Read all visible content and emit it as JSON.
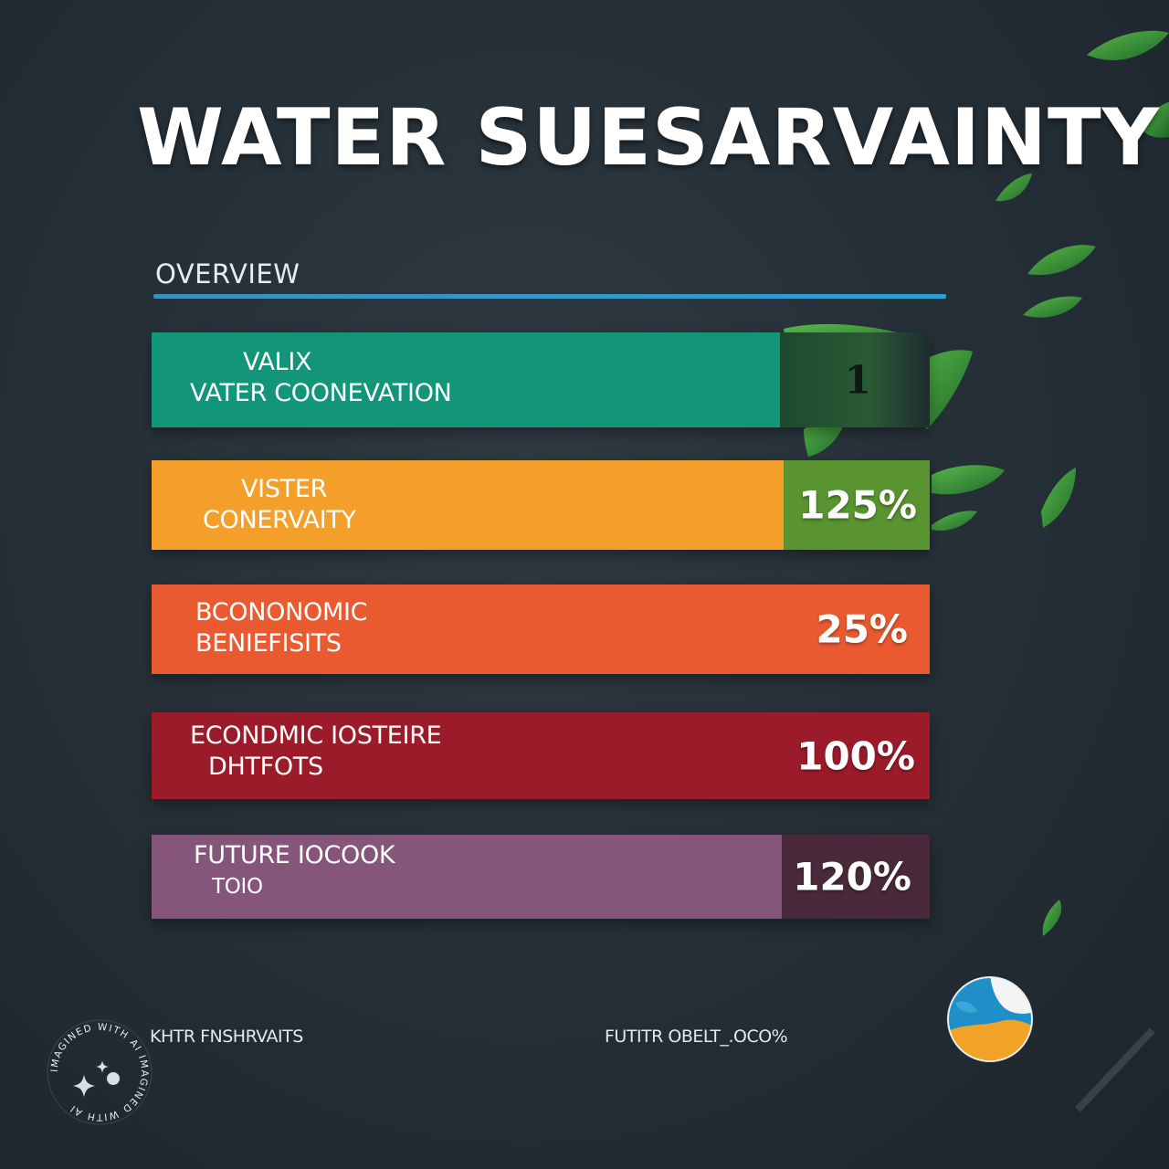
{
  "title": "WATER SUESARVAINTY",
  "overview": {
    "label": "OVERVIEW",
    "rule_color": "#2aa0d6"
  },
  "bars": [
    {
      "lines": [
        "VALIX",
        "VATER COONEVATION"
      ],
      "value": "1",
      "main_color": "#13957a",
      "value_color": "#2a5a34"
    },
    {
      "lines": [
        "VISTER",
        "CONERVAITY"
      ],
      "value": "125%",
      "main_color": "#f39f2a",
      "value_color": "#5a9431"
    },
    {
      "lines": [
        "BCONONOMIC",
        "BENIEFISITS"
      ],
      "value": "25%",
      "main_color": "#ea5a30",
      "value_color": "#ea5a30"
    },
    {
      "lines": [
        "ECONDMIC IOSTEIRE",
        "DHTFOTS"
      ],
      "value": "100%",
      "main_color": "#9b1b2a",
      "value_color": "#9b1b2a"
    },
    {
      "lines": [
        "FUTURE IOCOOK",
        "TOIO"
      ],
      "value": "120%",
      "main_color": "#85567a",
      "value_color": "#4a2a3a"
    }
  ],
  "footer": {
    "left": "KHTR FNSHRVAITS",
    "middle": "FUTITR OBELT_.OCO%"
  },
  "badge": {
    "text": "IMAGINED WITH AI IMAGINED WITH AI",
    "icon": "sparkle-icon"
  },
  "globe_icon": "earth-globe-icon",
  "leaf_color": "#3a9a3a"
}
